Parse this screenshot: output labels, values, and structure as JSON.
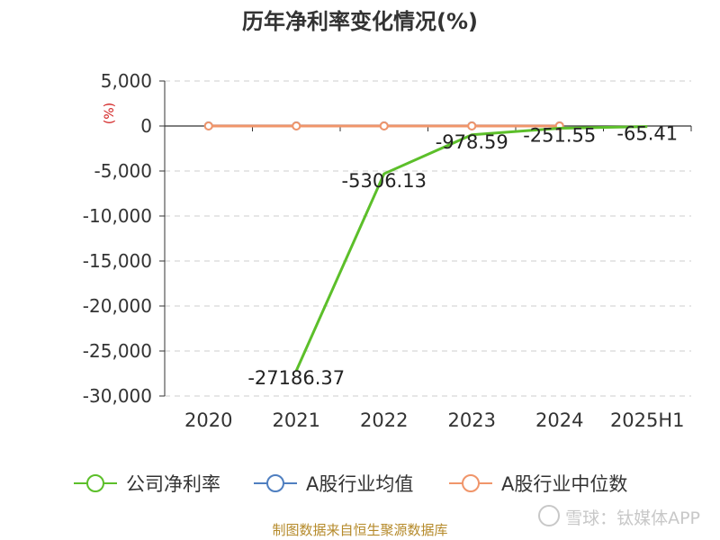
{
  "chart_data": {
    "type": "line",
    "title": "历年净利率变化情况(%)",
    "unit_label": "(%)",
    "categories": [
      "2020",
      "2021",
      "2022",
      "2023",
      "2024",
      "2025H1"
    ],
    "yticks": [
      5000,
      0,
      -5000,
      -10000,
      -15000,
      -20000,
      -25000,
      -30000
    ],
    "ytick_labels": [
      "5,000",
      "0",
      "-5,000",
      "-10,000",
      "-15,000",
      "-20,000",
      "-25,000",
      "-30,000"
    ],
    "ylim": [
      -30000,
      5000
    ],
    "grid": true,
    "legend_position": "bottom",
    "series": [
      {
        "name": "公司净利率",
        "color": "#5cbf2a",
        "values": [
          null,
          -27186.37,
          -5306.13,
          -978.59,
          -251.55,
          -65.41
        ],
        "labels": [
          "",
          "-27186.37",
          "-5306.13",
          "-978.59",
          "-251.55",
          "-65.41"
        ]
      },
      {
        "name": "A股行业均值",
        "color": "#4f7fc0",
        "values": [
          15,
          15,
          15,
          15,
          15,
          null
        ]
      },
      {
        "name": "A股行业中位数",
        "color": "#f0956a",
        "values": [
          5,
          5,
          5,
          5,
          5,
          null
        ]
      }
    ]
  },
  "footer": {
    "source": "制图数据来自恒生聚源数据库",
    "watermark": "雪球：钛媒体APP"
  }
}
